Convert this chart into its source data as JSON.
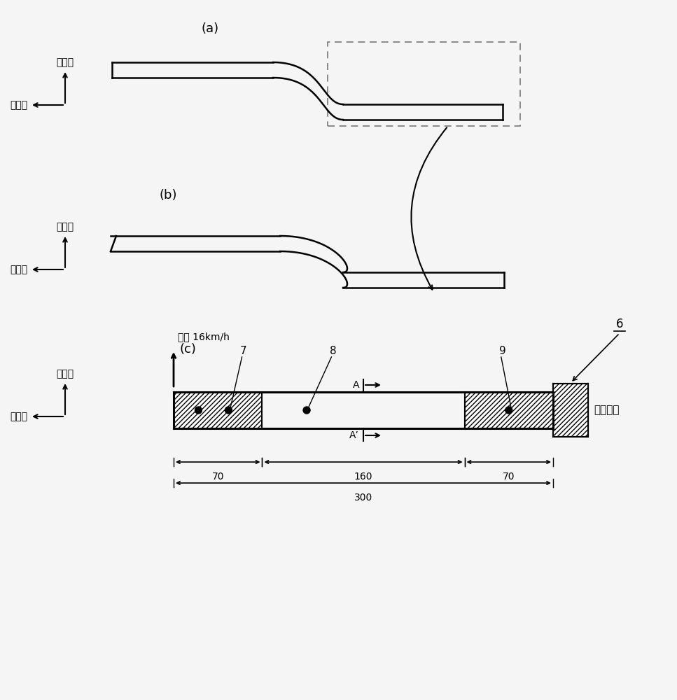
{
  "bg_color": "#f5f5f5",
  "label_a": "(a)",
  "label_b": "(b)",
  "label_c": "(c)",
  "axis_label_up": "车辆上",
  "axis_label_front": "车辆前",
  "speed_label": "等速 16km/h",
  "num7": "7",
  "num8": "8",
  "num9": "9",
  "num6": "6",
  "dim_70_left": "70",
  "dim_160": "160",
  "dim_70_right": "70",
  "dim_300": "300",
  "A_label": "A",
  "Ap_label": "A’",
  "constraint_label": "完全约束"
}
